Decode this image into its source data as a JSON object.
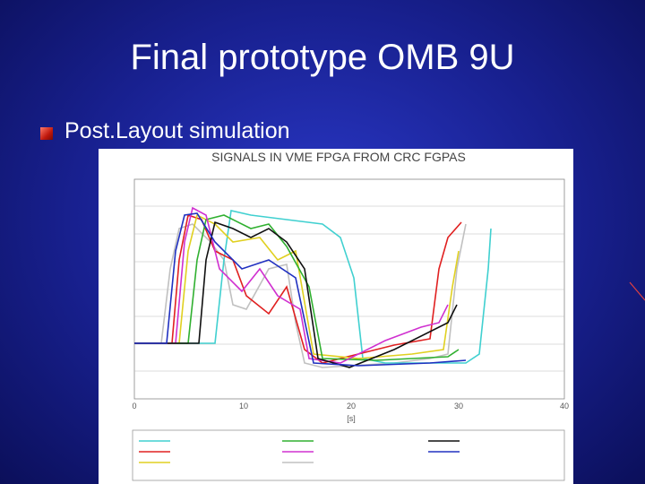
{
  "slide": {
    "title": "Final prototype OMB 9U",
    "bullet": "Post.Layout simulation"
  },
  "plot": {
    "title": "SIGNALS IN VME FPGA FROM CRC FGPAS",
    "x_label": "[s]",
    "x_tick_labels": [
      "0",
      "10",
      "20",
      "30",
      "40"
    ]
  }
}
